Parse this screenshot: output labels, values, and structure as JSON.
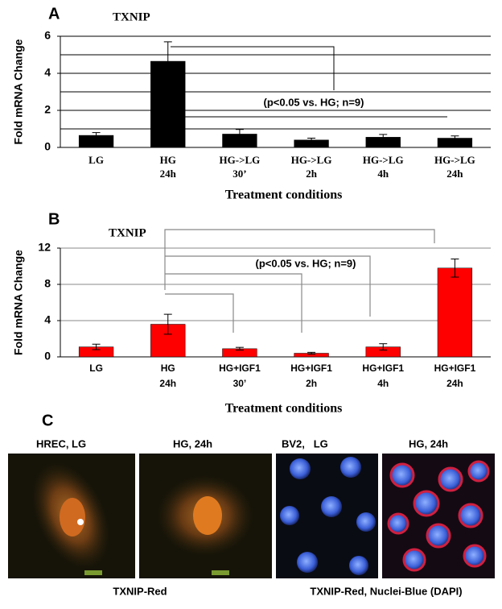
{
  "panel_labels": [
    "A",
    "B",
    "C"
  ],
  "chart_data": [
    {
      "type": "bar",
      "title": "TXNIP",
      "y_label": "Fold mRNA Change",
      "x_label": "Treatment conditions",
      "annotation": "(p<0.05 vs. HG; n=9)",
      "color": "#000000",
      "categories": [
        "LG",
        "HG\n24h",
        "HG->LG\n30’",
        "HG->LG\n2h",
        "HG->LG\n4h",
        "HG->LG\n24h"
      ],
      "values": [
        0.65,
        4.65,
        0.72,
        0.4,
        0.55,
        0.5
      ],
      "errors": [
        0.15,
        1.05,
        0.25,
        0.1,
        0.15,
        0.12
      ],
      "ylim": [
        0,
        6
      ],
      "yticks": [
        0,
        2,
        4,
        6
      ],
      "ygrid": [
        1,
        2,
        3,
        4,
        5,
        6
      ],
      "grid": true
    },
    {
      "type": "bar",
      "title": "TXNIP",
      "y_label": "Fold mRNA Change",
      "x_label": "Treatment conditions",
      "annotation": "(p<0.05 vs. HG; n=9)",
      "color": "#ff0000",
      "categories": [
        "LG",
        "HG\n24h",
        "HG+IGF1\n30’",
        "HG+IGF1\n2h",
        "HG+IGF1\n4h",
        "HG+IGF1\n24h"
      ],
      "values": [
        1.1,
        3.6,
        0.9,
        0.4,
        1.1,
        9.8
      ],
      "errors": [
        0.3,
        1.1,
        0.15,
        0.1,
        0.35,
        1.0
      ],
      "ylim": [
        0,
        12
      ],
      "yticks": [
        0,
        4,
        8,
        12
      ],
      "ygrid": [
        4,
        8,
        12
      ],
      "grid": true
    }
  ],
  "panel_c": {
    "image_labels": [
      "HREC, LG",
      "HG, 24h",
      "BV2,   LG",
      "HG, 24h"
    ],
    "captions": [
      "TXNIP-Red",
      "TXNIP-Red, Nuclei-Blue (DAPI)"
    ]
  }
}
